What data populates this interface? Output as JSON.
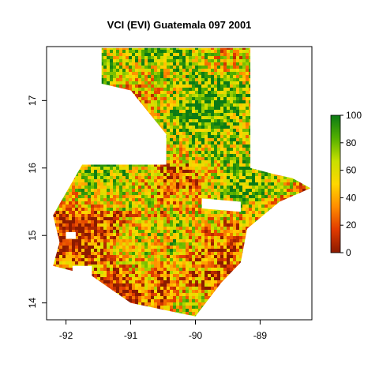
{
  "title": "VCI (EVI) Guatemala 097 2001",
  "x_axis": {
    "range": [
      -92.3,
      -88.2
    ],
    "ticks": [
      {
        "value": -92,
        "label": "-92"
      },
      {
        "value": -91,
        "label": "-91"
      },
      {
        "value": -90,
        "label": "-90"
      },
      {
        "value": -89,
        "label": "-89"
      }
    ]
  },
  "y_axis": {
    "range": [
      13.75,
      17.8
    ],
    "ticks": [
      {
        "value": 14,
        "label": "14"
      },
      {
        "value": 15,
        "label": "15"
      },
      {
        "value": 16,
        "label": "16"
      },
      {
        "value": 17,
        "label": "17"
      }
    ]
  },
  "legend": {
    "position": "right",
    "range": [
      0,
      100
    ],
    "ticks": [
      {
        "value": 0,
        "label": "0"
      },
      {
        "value": 20,
        "label": "20"
      },
      {
        "value": 40,
        "label": "40"
      },
      {
        "value": 60,
        "label": "60"
      },
      {
        "value": 80,
        "label": "80"
      },
      {
        "value": 100,
        "label": "100"
      }
    ],
    "colors": [
      "#8b1a00",
      "#e03a00",
      "#ff8c00",
      "#ffd700",
      "#c8e000",
      "#54b000",
      "#0b7a16"
    ]
  },
  "map": {
    "outline_lonlat": [
      [
        -91.45,
        17.78
      ],
      [
        -89.15,
        17.78
      ],
      [
        -89.15,
        16.0
      ],
      [
        -88.75,
        15.9
      ],
      [
        -88.5,
        15.85
      ],
      [
        -88.22,
        15.7
      ],
      [
        -88.7,
        15.5
      ],
      [
        -89.2,
        15.1
      ],
      [
        -89.3,
        14.6
      ],
      [
        -89.6,
        14.3
      ],
      [
        -90.0,
        13.8
      ],
      [
        -90.5,
        13.9
      ],
      [
        -91.0,
        14.0
      ],
      [
        -91.6,
        14.4
      ],
      [
        -92.2,
        14.55
      ],
      [
        -92.1,
        14.9
      ],
      [
        -92.2,
        15.3
      ],
      [
        -91.75,
        16.05
      ],
      [
        -90.45,
        16.05
      ],
      [
        -90.45,
        16.5
      ],
      [
        -91.0,
        17.15
      ],
      [
        -91.45,
        17.25
      ]
    ],
    "gaps_lonlat": [
      [
        [
          -89.9,
          15.55
        ],
        [
          -89.3,
          15.5
        ],
        [
          -89.3,
          15.35
        ],
        [
          -89.9,
          15.4
        ]
      ],
      [
        [
          -91.9,
          14.55
        ],
        [
          -91.6,
          14.55
        ],
        [
          -91.6,
          14.3
        ],
        [
          -91.9,
          14.35
        ]
      ],
      [
        [
          -92.0,
          15.05
        ],
        [
          -91.85,
          15.05
        ],
        [
          -91.85,
          14.95
        ],
        [
          -92.0,
          14.95
        ]
      ]
    ]
  }
}
